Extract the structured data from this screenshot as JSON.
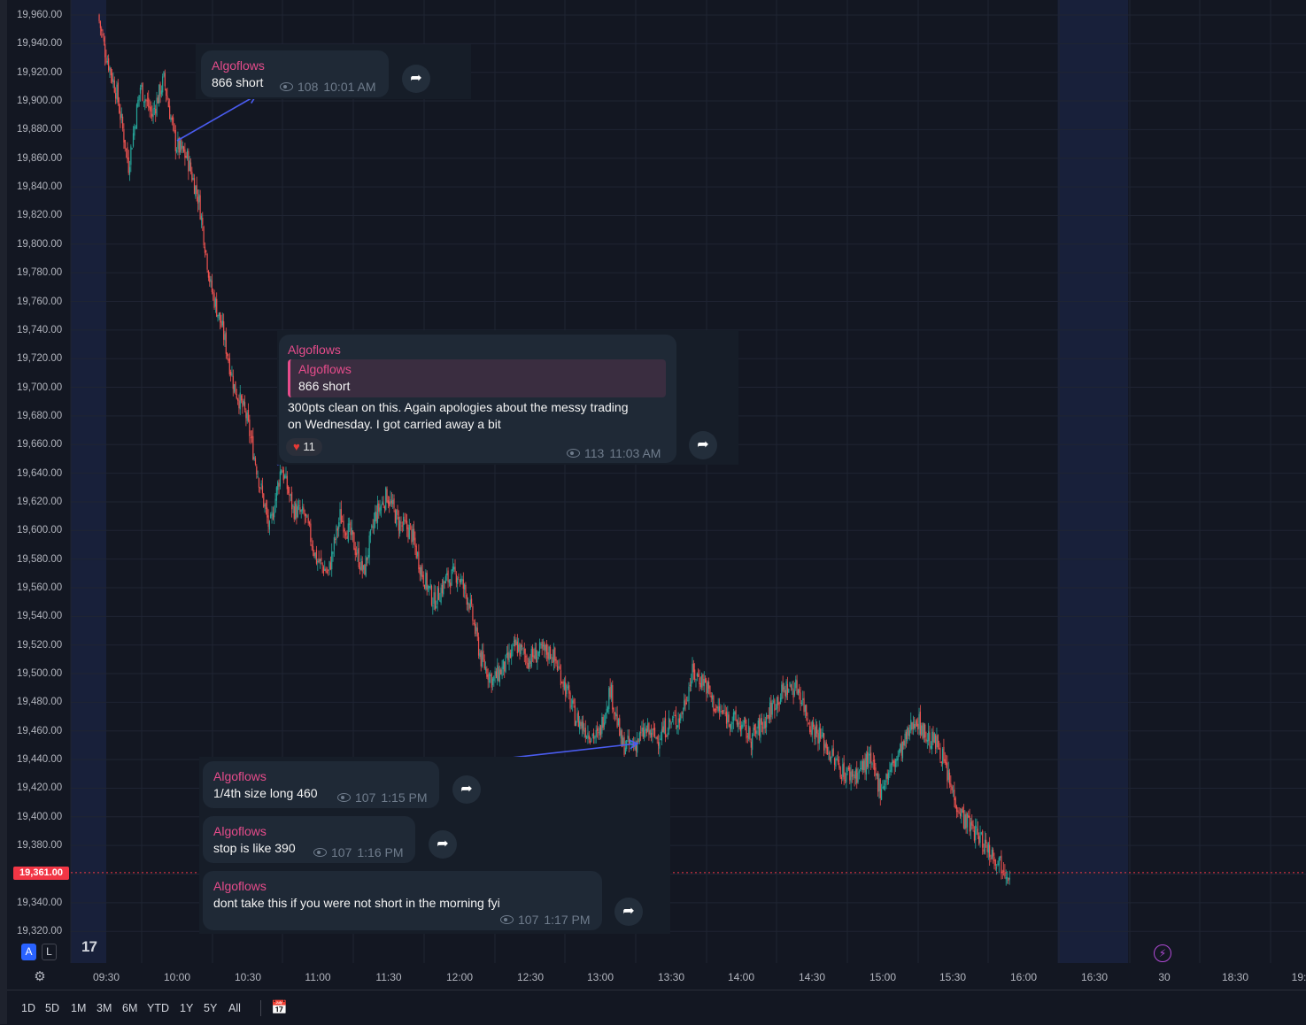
{
  "price_axis": {
    "labels": [
      "19,960.00",
      "19,940.00",
      "19,920.00",
      "19,900.00",
      "19,880.00",
      "19,860.00",
      "19,840.00",
      "19,820.00",
      "19,800.00",
      "19,780.00",
      "19,760.00",
      "19,740.00",
      "19,720.00",
      "19,700.00",
      "19,680.00",
      "19,660.00",
      "19,640.00",
      "19,620.00",
      "19,600.00",
      "19,580.00",
      "19,560.00",
      "19,540.00",
      "19,520.00",
      "19,500.00",
      "19,480.00",
      "19,460.00",
      "19,440.00",
      "19,420.00",
      "19,400.00",
      "19,380.00",
      "19,340.00",
      "19,320.00"
    ],
    "current_price": "19,361.00",
    "current_price_color": "#f23645"
  },
  "time_axis": {
    "labels": [
      "09:30",
      "10:00",
      "10:30",
      "11:00",
      "11:30",
      "12:00",
      "12:30",
      "13:00",
      "13:30",
      "14:00",
      "14:30",
      "15:00",
      "15:30",
      "16:00",
      "16:30",
      "30",
      "18:30",
      "19:"
    ]
  },
  "chart_data": {
    "type": "candlestick",
    "title": "",
    "y_range": [
      19310,
      19965
    ],
    "up_color": "#26a69a",
    "down_color": "#ef5350",
    "price_path": [
      [
        "09:27",
        19960
      ],
      [
        "09:30",
        19935
      ],
      [
        "09:35",
        19905
      ],
      [
        "09:40",
        19855
      ],
      [
        "09:45",
        19910
      ],
      [
        "09:50",
        19890
      ],
      [
        "09:55",
        19915
      ],
      [
        "10:00",
        19870
      ],
      [
        "10:05",
        19860
      ],
      [
        "10:10",
        19830
      ],
      [
        "10:15",
        19770
      ],
      [
        "10:20",
        19740
      ],
      [
        "10:25",
        19700
      ],
      [
        "10:30",
        19680
      ],
      [
        "10:35",
        19640
      ],
      [
        "10:40",
        19600
      ],
      [
        "10:45",
        19645
      ],
      [
        "10:50",
        19615
      ],
      [
        "10:55",
        19610
      ],
      [
        "11:00",
        19580
      ],
      [
        "11:05",
        19570
      ],
      [
        "11:10",
        19610
      ],
      [
        "11:15",
        19595
      ],
      [
        "11:20",
        19570
      ],
      [
        "11:25",
        19610
      ],
      [
        "11:30",
        19625
      ],
      [
        "11:35",
        19605
      ],
      [
        "11:40",
        19600
      ],
      [
        "11:45",
        19570
      ],
      [
        "11:50",
        19550
      ],
      [
        "11:55",
        19565
      ],
      [
        "12:00",
        19570
      ],
      [
        "12:05",
        19550
      ],
      [
        "12:10",
        19510
      ],
      [
        "12:15",
        19495
      ],
      [
        "12:20",
        19505
      ],
      [
        "12:25",
        19520
      ],
      [
        "12:30",
        19510
      ],
      [
        "12:35",
        19515
      ],
      [
        "12:40",
        19515
      ],
      [
        "12:45",
        19495
      ],
      [
        "12:50",
        19470
      ],
      [
        "12:55",
        19460
      ],
      [
        "13:00",
        19455
      ],
      [
        "13:05",
        19490
      ],
      [
        "13:10",
        19450
      ],
      [
        "13:15",
        19450
      ],
      [
        "13:20",
        19460
      ],
      [
        "13:25",
        19455
      ],
      [
        "13:30",
        19465
      ],
      [
        "13:35",
        19470
      ],
      [
        "13:40",
        19500
      ],
      [
        "13:45",
        19495
      ],
      [
        "13:50",
        19475
      ],
      [
        "13:55",
        19470
      ],
      [
        "14:00",
        19465
      ],
      [
        "14:05",
        19455
      ],
      [
        "14:10",
        19465
      ],
      [
        "14:15",
        19480
      ],
      [
        "14:20",
        19490
      ],
      [
        "14:25",
        19490
      ],
      [
        "14:30",
        19465
      ],
      [
        "14:35",
        19455
      ],
      [
        "14:40",
        19440
      ],
      [
        "14:45",
        19430
      ],
      [
        "14:50",
        19430
      ],
      [
        "14:55",
        19440
      ],
      [
        "15:00",
        19420
      ],
      [
        "15:05",
        19435
      ],
      [
        "15:10",
        19450
      ],
      [
        "15:15",
        19470
      ],
      [
        "15:20",
        19455
      ],
      [
        "15:25",
        19450
      ],
      [
        "15:30",
        19420
      ],
      [
        "15:35",
        19400
      ],
      [
        "15:40",
        19390
      ],
      [
        "15:45",
        19380
      ],
      [
        "15:50",
        19370
      ],
      [
        "15:55",
        19361
      ]
    ],
    "session_highlights": [
      [
        "09:15",
        "09:30"
      ],
      [
        "16:15",
        "16:45"
      ]
    ],
    "current_price": 19361
  },
  "messages": [
    {
      "sender": "Algoflows",
      "text": "866 short",
      "views": "108",
      "time": "10:01 AM"
    },
    {
      "sender": "Algoflows",
      "quote_sender": "Algoflows",
      "quote_text": "866 short",
      "text_line1": "300pts clean on this. Again apologies about the messy trading",
      "text_line2": "on Wednesday. I got carried away a bit",
      "reaction_emoji": "♥",
      "reaction_count": "11",
      "views": "113",
      "time": "11:03 AM"
    },
    {
      "sender": "Algoflows",
      "text": "1/4th size long 460",
      "views": "107",
      "time": "1:15 PM"
    },
    {
      "sender": "Algoflows",
      "text": "stop is like 390",
      "views": "107",
      "time": "1:16 PM"
    },
    {
      "sender": "Algoflows",
      "text": "dont take this if you were not short in the morning fyi",
      "views": "107",
      "time": "1:17 PM"
    }
  ],
  "range_buttons": [
    "1D",
    "5D",
    "1M",
    "3M",
    "6M",
    "YTD",
    "1Y",
    "5Y",
    "All"
  ],
  "toolbar": {
    "logo": "17",
    "btn_a": "A",
    "btn_l": "L"
  },
  "icons": {
    "forward": "forward-arrow-icon",
    "settings": "gear-icon",
    "calendar": "calendar-range-icon",
    "bolt": "lightning-icon",
    "eye": "eye-icon"
  }
}
